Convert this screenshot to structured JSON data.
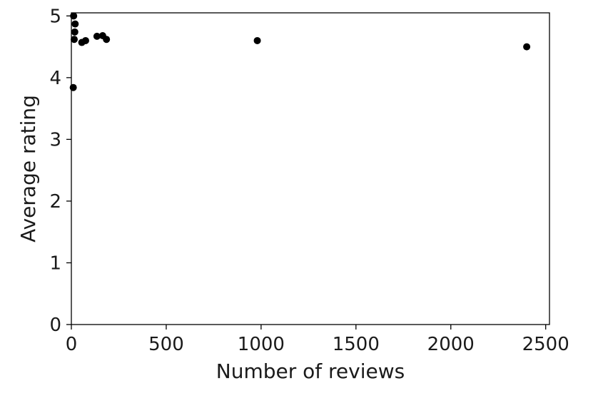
{
  "chart_data": {
    "type": "scatter",
    "title": "",
    "xlabel": "Number of reviews",
    "ylabel": "Average rating",
    "xlim": [
      0,
      2520
    ],
    "ylim": [
      0,
      5.05
    ],
    "xticks": [
      0,
      500,
      1000,
      1500,
      2000,
      2500
    ],
    "yticks": [
      0,
      1,
      2,
      3,
      4,
      5
    ],
    "grid": false,
    "legend": "none",
    "marker_color": "#000000",
    "points": [
      {
        "x": 12,
        "y": 5.0
      },
      {
        "x": 20,
        "y": 4.87
      },
      {
        "x": 18,
        "y": 4.74
      },
      {
        "x": 15,
        "y": 4.62
      },
      {
        "x": 10,
        "y": 3.84
      },
      {
        "x": 55,
        "y": 4.57
      },
      {
        "x": 75,
        "y": 4.6
      },
      {
        "x": 135,
        "y": 4.67
      },
      {
        "x": 165,
        "y": 4.68
      },
      {
        "x": 185,
        "y": 4.62
      },
      {
        "x": 980,
        "y": 4.6
      },
      {
        "x": 2400,
        "y": 4.5
      }
    ]
  }
}
